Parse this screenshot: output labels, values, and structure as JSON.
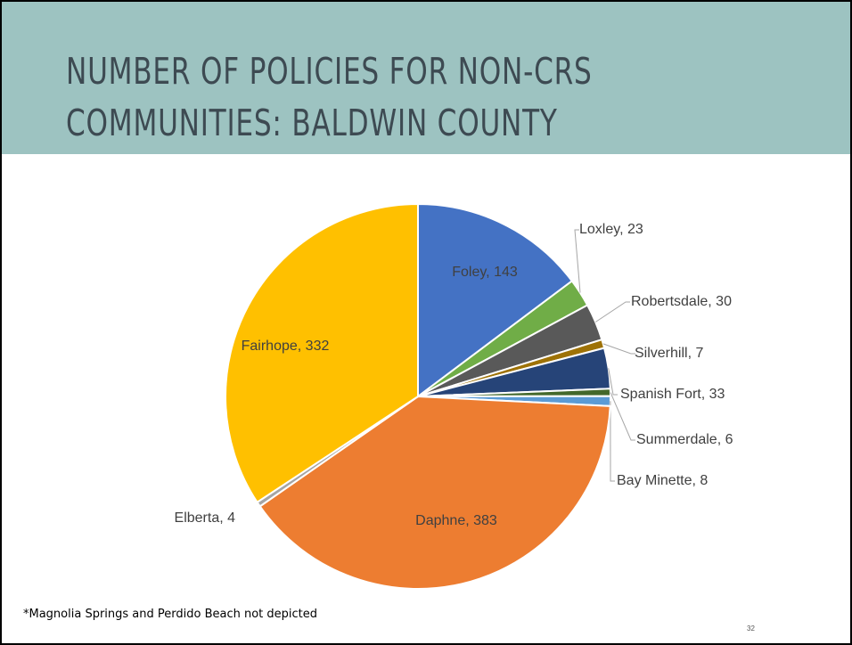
{
  "slide": {
    "title_line_1": "NUMBER OF POLICIES FOR NON-CRS",
    "title_line_2": "COMMUNITIES: BALDWIN COUNTY",
    "footnote": "*Magnolia Springs and Perdido Beach not depicted",
    "page_number": "32"
  },
  "chart_data": {
    "type": "pie",
    "title": "",
    "slices": [
      {
        "name": "Foley",
        "value": 143,
        "label": "Foley, 143",
        "color": "#4472c4"
      },
      {
        "name": "Loxley",
        "value": 23,
        "label": "Loxley, 23",
        "color": "#70ad47"
      },
      {
        "name": "Robertsdale",
        "value": 30,
        "label": "Robertsdale, 30",
        "color": "#595959"
      },
      {
        "name": "Silverhill",
        "value": 7,
        "label": "Silverhill, 7",
        "color": "#9e7206"
      },
      {
        "name": "Spanish Fort",
        "value": 33,
        "label": "Spanish Fort, 33",
        "color": "#264478"
      },
      {
        "name": "Summerdale",
        "value": 6,
        "label": "Summerdale, 6",
        "color": "#43682b"
      },
      {
        "name": "Bay Minette",
        "value": 8,
        "label": "Bay Minette, 8",
        "color": "#5b9bd5"
      },
      {
        "name": "Daphne",
        "value": 383,
        "label": "Daphne, 383",
        "color": "#ed7d31"
      },
      {
        "name": "Elberta",
        "value": 4,
        "label": "Elberta, 4",
        "color": "#a5a5a5"
      },
      {
        "name": "Fairhope",
        "value": 332,
        "label": "Fairhope, 332",
        "color": "#ffc000"
      }
    ]
  }
}
